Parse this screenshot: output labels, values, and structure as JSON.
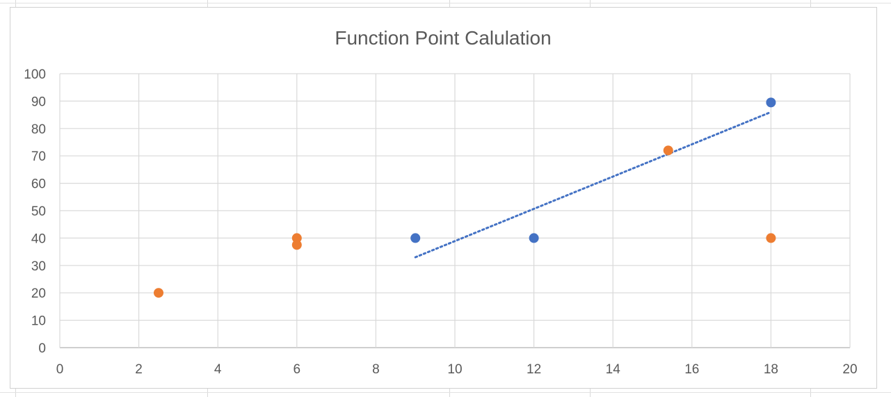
{
  "chart_data": {
    "type": "scatter",
    "title": "Function Point Calulation",
    "xlabel": "",
    "ylabel": "",
    "xlim": [
      0,
      20
    ],
    "ylim": [
      0,
      100
    ],
    "x_ticks": [
      0,
      2,
      4,
      6,
      8,
      10,
      12,
      14,
      16,
      18,
      20
    ],
    "y_ticks": [
      0,
      10,
      20,
      30,
      40,
      50,
      60,
      70,
      80,
      90,
      100
    ],
    "grid": true,
    "legend": "none",
    "series": [
      {
        "color": "#4472C4",
        "points": [
          {
            "x": 9,
            "y": 40
          },
          {
            "x": 12,
            "y": 40
          },
          {
            "x": 18,
            "y": 89.5
          }
        ],
        "trendline": {
          "type": "linear",
          "style": "dotted",
          "color": "#4472C4",
          "from": {
            "x": 9,
            "y": 33
          },
          "to": {
            "x": 18,
            "y": 86
          }
        }
      },
      {
        "color": "#ED7D31",
        "points": [
          {
            "x": 2.5,
            "y": 20
          },
          {
            "x": 6,
            "y": 40
          },
          {
            "x": 6,
            "y": 37.5
          },
          {
            "x": 15.4,
            "y": 72
          },
          {
            "x": 18,
            "y": 40
          }
        ]
      }
    ]
  }
}
